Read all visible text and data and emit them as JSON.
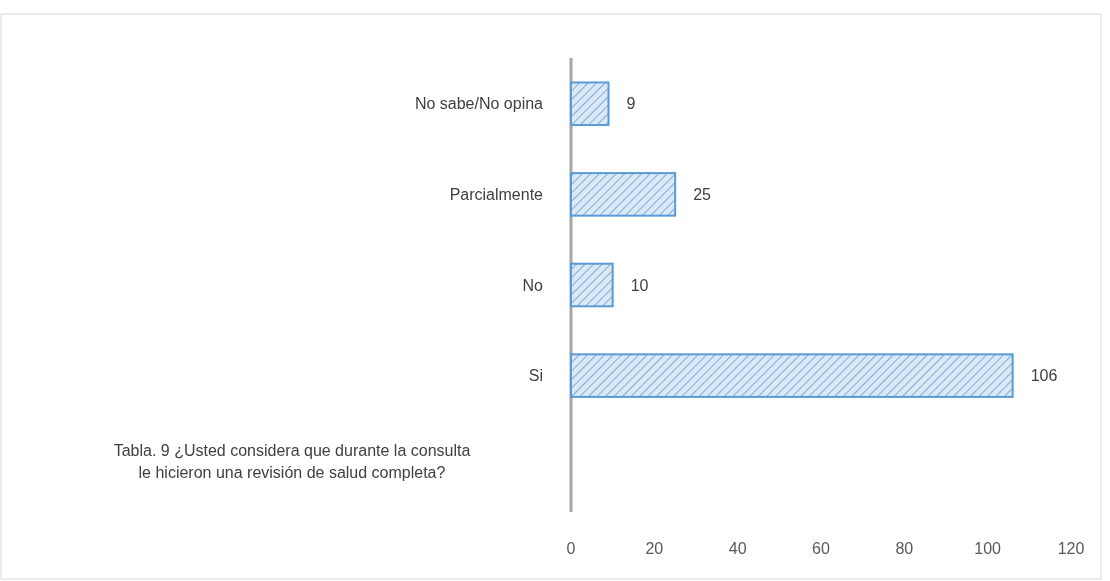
{
  "chart_data": {
    "type": "bar",
    "orientation": "horizontal",
    "categories": [
      "No sabe/No opina",
      "Parcialmente",
      "No",
      "Si"
    ],
    "values": [
      9,
      25,
      10,
      106
    ],
    "color": "#5b9bd5",
    "xlim": [
      0,
      120
    ],
    "xticks": [
      0,
      20,
      40,
      60,
      80,
      100,
      120
    ],
    "data_labels": true,
    "grid": false,
    "annotations": [
      "Tabla. 9   ¿Usted considera que durante la consulta le hicieron una revisión de salud completa?"
    ]
  }
}
